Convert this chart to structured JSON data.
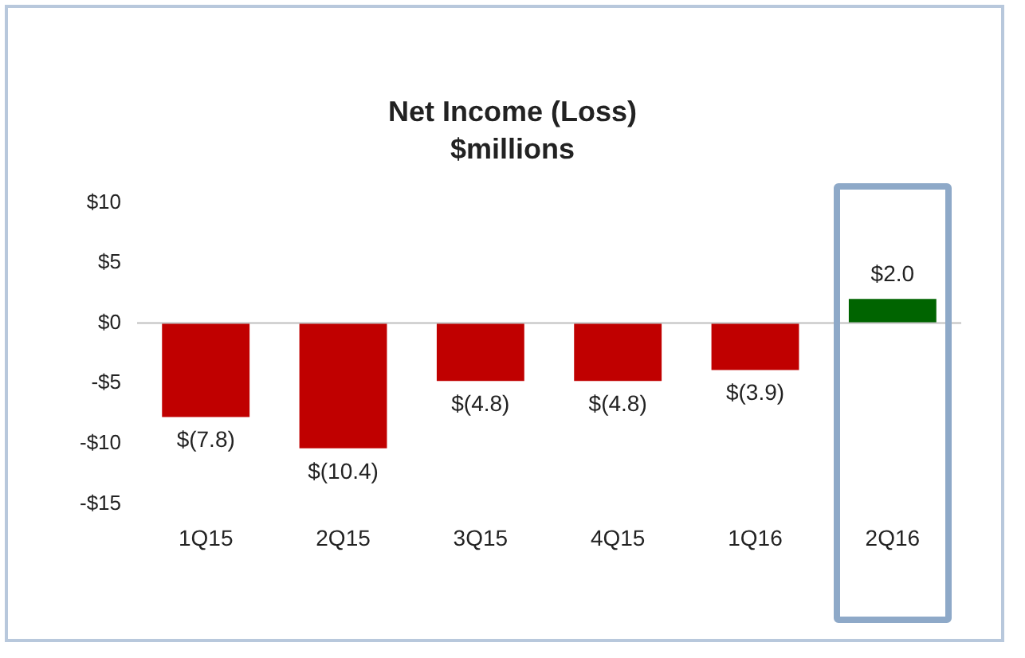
{
  "chart_data": {
    "type": "bar",
    "title": "Net Income (Loss)",
    "subtitle": "$millions",
    "categories": [
      "1Q15",
      "2Q15",
      "3Q15",
      "4Q15",
      "1Q16",
      "2Q16"
    ],
    "values": [
      -7.8,
      -10.4,
      -4.8,
      -4.8,
      -3.9,
      2.0
    ],
    "colors": [
      "#c00000",
      "#c00000",
      "#c00000",
      "#c00000",
      "#c00000",
      "#006400"
    ],
    "value_labels": [
      "$(7.8)",
      "$(10.4)",
      "$(4.8)",
      "$(4.8)",
      "$(3.9)",
      "$2.0"
    ],
    "ylim": [
      -15,
      10
    ],
    "yticks": [
      {
        "value": -15,
        "label": "-$15"
      },
      {
        "value": -10,
        "label": "-$10"
      },
      {
        "value": -5,
        "label": "-$5"
      },
      {
        "value": 0,
        "label": "$0"
      },
      {
        "value": 5,
        "label": "$5"
      },
      {
        "value": 10,
        "label": "$10"
      }
    ],
    "ref_lines": [
      {
        "axis": "y",
        "value": 0,
        "color": "#bfbfbf"
      }
    ],
    "grid": false,
    "legend": false
  }
}
